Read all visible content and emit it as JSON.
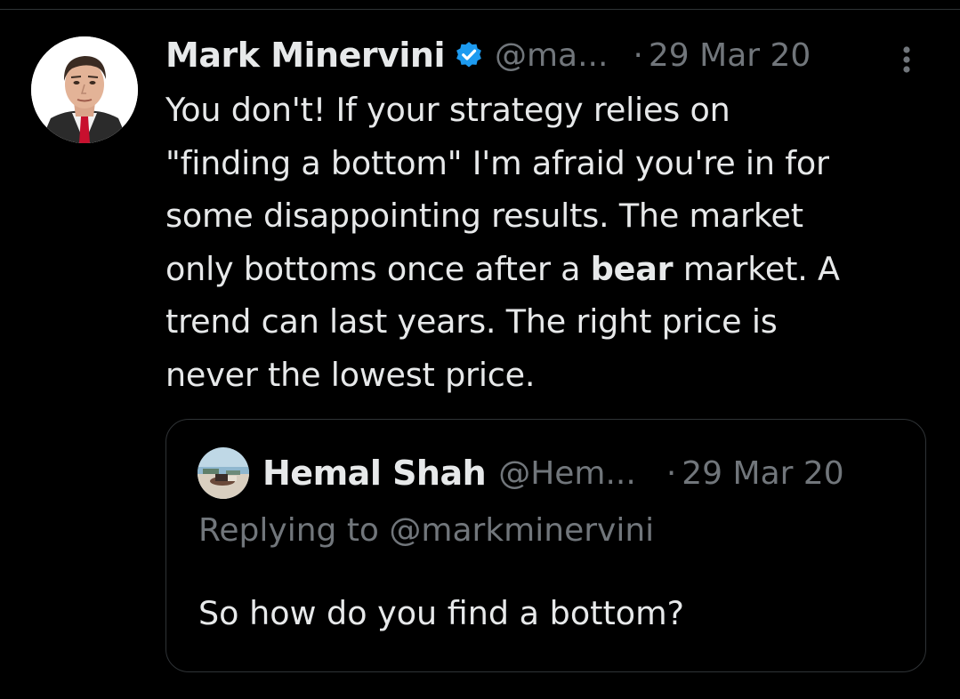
{
  "tweet": {
    "author": {
      "display_name": "Mark Minervini",
      "handle": "@ma...",
      "verified": true,
      "avatar": "avatar-portrait-icon"
    },
    "separator": "·",
    "date": "29 Mar 20",
    "more_icon": "more-vertical-icon",
    "text_lines": [
      {
        "before": "You don't!  If your strategy relies on",
        "bold": "",
        "after": ""
      },
      {
        "before": "\"finding a bottom\" I'm afraid you're in for",
        "bold": "",
        "after": ""
      },
      {
        "before": "some disappointing results. The market",
        "bold": "",
        "after": ""
      },
      {
        "before": "only bottoms once after a ",
        "bold": "bear",
        "after": " market. A"
      },
      {
        "before": "trend can last years. The right price is",
        "bold": "",
        "after": ""
      },
      {
        "before": "never the lowest price.",
        "bold": "",
        "after": ""
      }
    ]
  },
  "quoted_tweet": {
    "author": {
      "display_name": "Hemal Shah",
      "handle": "@Hem...",
      "avatar": "avatar-beach-icon"
    },
    "separator": "·",
    "date": "29 Mar 20",
    "replying_to": "Replying to @markminervini",
    "text": "So how do you find a bottom?"
  },
  "colors": {
    "background": "#000000",
    "primary_text": "#e7e9ea",
    "secondary_text": "#71767b",
    "border": "#2f3336",
    "verified_badge": "#1d9bf0"
  }
}
